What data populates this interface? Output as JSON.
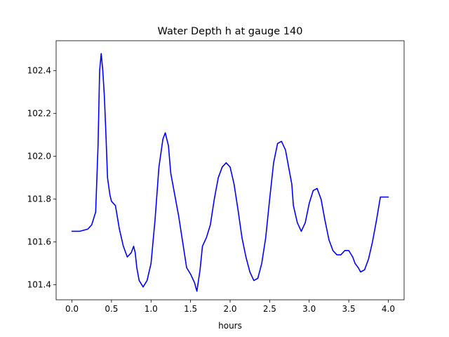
{
  "chart_data": {
    "type": "line",
    "title": "Water Depth h at gauge 140",
    "xlabel": "hours",
    "ylabel": "",
    "xlim": [
      -0.2,
      4.2
    ],
    "ylim": [
      101.33,
      102.54
    ],
    "xticks": [
      0.0,
      0.5,
      1.0,
      1.5,
      2.0,
      2.5,
      3.0,
      3.5,
      4.0
    ],
    "xtick_labels": [
      "0.0",
      "0.5",
      "1.0",
      "1.5",
      "2.0",
      "2.5",
      "3.0",
      "3.5",
      "4.0"
    ],
    "yticks": [
      101.4,
      101.6,
      101.8,
      102.0,
      102.2,
      102.4
    ],
    "ytick_labels": [
      "101.4",
      "101.6",
      "101.8",
      "102.0",
      "102.2",
      "102.4"
    ],
    "grid": false,
    "legend": "none",
    "series": [
      {
        "color": "#0000ff",
        "x": [
          0.0,
          0.1,
          0.2,
          0.25,
          0.3,
          0.33,
          0.35,
          0.37,
          0.39,
          0.41,
          0.43,
          0.45,
          0.48,
          0.5,
          0.55,
          0.6,
          0.65,
          0.7,
          0.75,
          0.78,
          0.8,
          0.82,
          0.85,
          0.9,
          0.95,
          1.0,
          1.05,
          1.1,
          1.15,
          1.18,
          1.22,
          1.25,
          1.3,
          1.35,
          1.4,
          1.45,
          1.5,
          1.55,
          1.58,
          1.62,
          1.65,
          1.7,
          1.75,
          1.8,
          1.85,
          1.9,
          1.95,
          2.0,
          2.05,
          2.1,
          2.15,
          2.2,
          2.25,
          2.3,
          2.35,
          2.4,
          2.45,
          2.5,
          2.55,
          2.6,
          2.65,
          2.7,
          2.74,
          2.78,
          2.8,
          2.85,
          2.9,
          2.95,
          3.0,
          3.05,
          3.1,
          3.15,
          3.2,
          3.25,
          3.3,
          3.35,
          3.4,
          3.45,
          3.5,
          3.55,
          3.58,
          3.62,
          3.65,
          3.7,
          3.75,
          3.8,
          3.85,
          3.9,
          3.95,
          4.0
        ],
        "y": [
          101.65,
          101.65,
          101.66,
          101.68,
          101.74,
          102.05,
          102.4,
          102.48,
          102.4,
          102.28,
          102.1,
          101.9,
          101.82,
          101.79,
          101.77,
          101.66,
          101.58,
          101.53,
          101.55,
          101.58,
          101.55,
          101.48,
          101.42,
          101.39,
          101.42,
          101.5,
          101.7,
          101.95,
          102.08,
          102.11,
          102.05,
          101.92,
          101.82,
          101.72,
          101.6,
          101.48,
          101.45,
          101.41,
          101.37,
          101.47,
          101.58,
          101.62,
          101.68,
          101.8,
          101.9,
          101.95,
          101.97,
          101.95,
          101.87,
          101.75,
          101.62,
          101.53,
          101.46,
          101.42,
          101.43,
          101.5,
          101.62,
          101.8,
          101.97,
          102.06,
          102.07,
          102.03,
          101.95,
          101.87,
          101.77,
          101.69,
          101.65,
          101.69,
          101.78,
          101.84,
          101.85,
          101.8,
          101.7,
          101.61,
          101.56,
          101.54,
          101.54,
          101.56,
          101.56,
          101.53,
          101.5,
          101.48,
          101.46,
          101.47,
          101.52,
          101.6,
          101.7,
          101.81,
          101.81,
          101.81
        ]
      }
    ]
  }
}
